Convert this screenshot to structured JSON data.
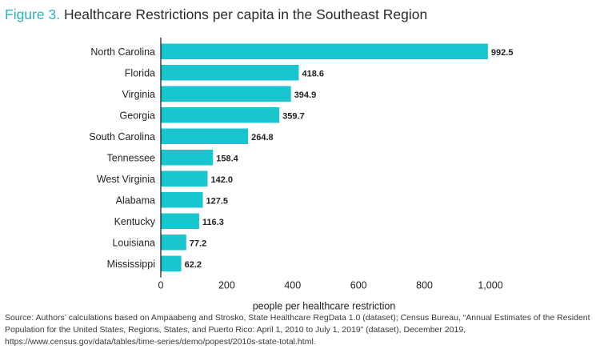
{
  "title": {
    "figure": "Figure 3.",
    "text": "Healthcare Restrictions per capita in the Southeast Region"
  },
  "colors": {
    "bar": "#19c6d0",
    "figure_label": "#27b4c2",
    "axis": "#231f20"
  },
  "chart_data": {
    "type": "bar",
    "orientation": "horizontal",
    "categories": [
      "North Carolina",
      "Florida",
      "Virginia",
      "Georgia",
      "South Carolina",
      "Tennessee",
      "West Virginia",
      "Alabama",
      "Kentucky",
      "Louisiana",
      "Mississippi"
    ],
    "values": [
      992.5,
      418.6,
      394.9,
      359.7,
      264.8,
      158.4,
      142.0,
      127.5,
      116.3,
      77.2,
      62.2
    ],
    "value_labels": [
      "992.5",
      "418.6",
      "394.9",
      "359.7",
      "264.8",
      "158.4",
      "142.0",
      "127.5",
      "116.3",
      "77.2",
      "62.2"
    ],
    "xlabel": "people per healthcare restriction",
    "ylabel": "",
    "xlim": [
      0,
      1000
    ],
    "xticks": [
      0,
      200,
      400,
      600,
      800,
      1000
    ],
    "xtick_labels": [
      "0",
      "200",
      "400",
      "600",
      "800",
      "1,000"
    ],
    "grid": false,
    "legend": "none"
  },
  "source": "Source: Authors’ calculations based on Ampaabeng and Strosko, State Healthcare RegData 1.0 (dataset); Census Bureau, “Annual Estimates of the Resident Population for the United States, Regions, States, and Puerto Rico: April 1, 2010 to July 1, 2019” (dataset), December 2019, https://www.census.gov/data/tables/time-series/demo/popest/2010s-state-total.html."
}
